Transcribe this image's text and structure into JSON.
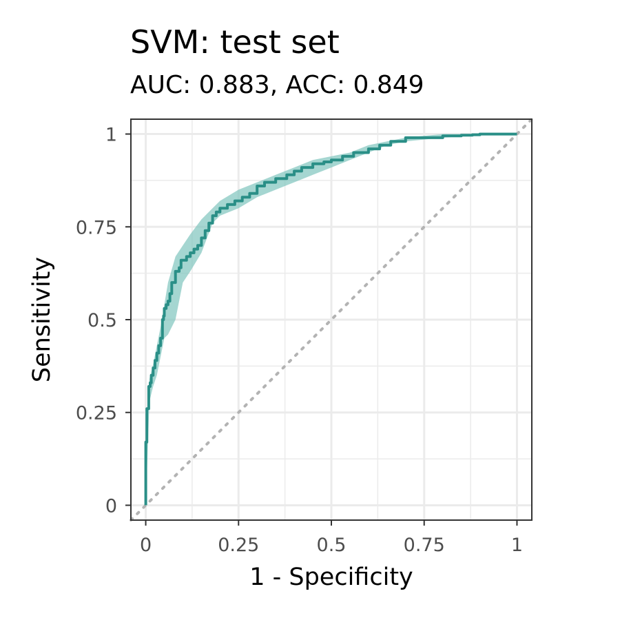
{
  "chart_data": {
    "type": "line",
    "title": "SVM: test set",
    "subtitle": "AUC: 0.883, ACC: 0.849",
    "xlabel": "1 - Specificity",
    "ylabel": "Sensitivity",
    "xlim": [
      -0.04,
      1.04
    ],
    "ylim": [
      -0.04,
      1.04
    ],
    "x_ticks": [
      0,
      0.25,
      0.5,
      0.75,
      1
    ],
    "x_tick_labels": [
      "0",
      "0.25",
      "0.5",
      "0.75",
      "1"
    ],
    "y_ticks": [
      0,
      0.25,
      0.5,
      0.75,
      1
    ],
    "y_tick_labels": [
      "0",
      "0.25",
      "0.5",
      "0.75",
      "1"
    ],
    "grid": true,
    "colors": {
      "curve": "#2a8f87",
      "ribbon": "#7fc4bd",
      "reference": "#b3b3b3",
      "grid": "#ebebeb",
      "panel_border": "#333333"
    },
    "series": [
      {
        "x": [
          0,
          0,
          0.003,
          0.003,
          0.008,
          0.008,
          0.012,
          0.015,
          0.02,
          0.025,
          0.03,
          0.035,
          0.04,
          0.045,
          0.048,
          0.05,
          0.055,
          0.06,
          0.065,
          0.07,
          0.08,
          0.09,
          0.095,
          0.1,
          0.11,
          0.12,
          0.13,
          0.14,
          0.15,
          0.16,
          0.17,
          0.18,
          0.19,
          0.2,
          0.22,
          0.24,
          0.26,
          0.28,
          0.3,
          0.3,
          0.32,
          0.35,
          0.38,
          0.4,
          0.42,
          0.45,
          0.48,
          0.5,
          0.53,
          0.56,
          0.6,
          0.63,
          0.66,
          0.7,
          0.75,
          0.8,
          0.85,
          0.88,
          0.9,
          0.95,
          1.0
        ],
        "y": [
          0,
          0.17,
          0.17,
          0.26,
          0.31,
          0.32,
          0.33,
          0.35,
          0.37,
          0.39,
          0.41,
          0.43,
          0.45,
          0.5,
          0.51,
          0.53,
          0.54,
          0.55,
          0.57,
          0.6,
          0.63,
          0.64,
          0.66,
          0.66,
          0.67,
          0.68,
          0.69,
          0.7,
          0.72,
          0.74,
          0.76,
          0.78,
          0.79,
          0.8,
          0.81,
          0.82,
          0.83,
          0.84,
          0.85,
          0.86,
          0.87,
          0.88,
          0.89,
          0.9,
          0.91,
          0.92,
          0.925,
          0.93,
          0.94,
          0.95,
          0.96,
          0.97,
          0.98,
          0.99,
          0.99,
          0.995,
          0.997,
          0.998,
          1.0,
          1.0,
          1.0
        ]
      }
    ],
    "ribbon": {
      "x": [
        0,
        0.01,
        0.02,
        0.03,
        0.04,
        0.05,
        0.06,
        0.08,
        0.1,
        0.12,
        0.15,
        0.18,
        0.2,
        0.25,
        0.3,
        0.35,
        0.4,
        0.45,
        0.5,
        0.55,
        0.6,
        0.65,
        0.7,
        0.8,
        0.9,
        1.0
      ],
      "lower": [
        0,
        0.28,
        0.32,
        0.35,
        0.4,
        0.45,
        0.46,
        0.5,
        0.6,
        0.63,
        0.68,
        0.76,
        0.78,
        0.8,
        0.83,
        0.85,
        0.87,
        0.89,
        0.91,
        0.93,
        0.95,
        0.97,
        0.98,
        0.99,
        0.997,
        1.0
      ],
      "upper": [
        0.17,
        0.34,
        0.38,
        0.43,
        0.48,
        0.54,
        0.6,
        0.67,
        0.7,
        0.73,
        0.77,
        0.8,
        0.82,
        0.85,
        0.87,
        0.89,
        0.91,
        0.93,
        0.94,
        0.95,
        0.97,
        0.98,
        0.99,
        1.0,
        1.0,
        1.0
      ]
    }
  }
}
